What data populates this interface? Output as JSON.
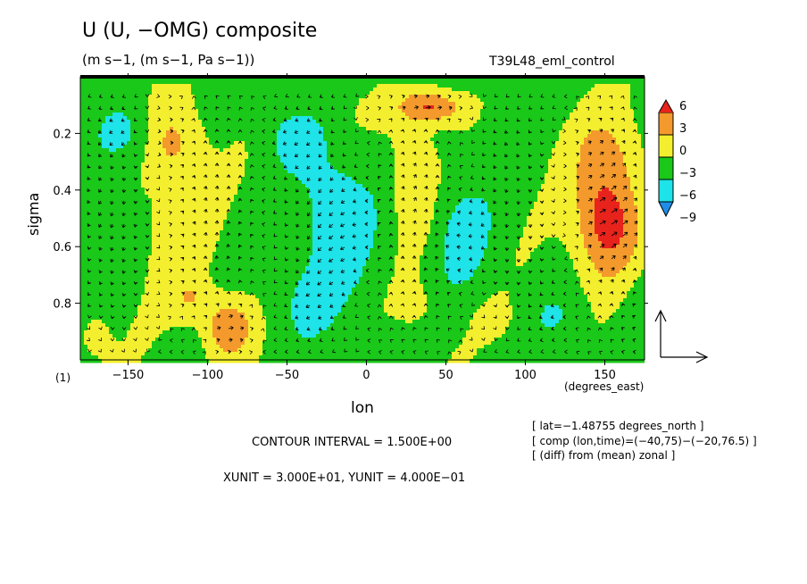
{
  "figure": {
    "title": "U (U, −OMG) composite",
    "units": "(m s−1, (m s−1, Pa s−1))",
    "run_name": "T39L48_eml_control",
    "panel_label": "(1)",
    "contour_interval": "CONTOUR INTERVAL = 1.500E+00",
    "vector_units": "XUNIT = 3.000E+01, YUNIT = 4.000E−01",
    "meta": [
      "[ lat=−1.48755 degrees_north ]",
      "[ comp (lon,time)=(−40,75)−(−20,76.5) ]",
      "[ (diff) from (mean) zonal ]"
    ]
  },
  "chart_data": {
    "type": "heatmap",
    "title": "U (U, −OMG) composite",
    "xlabel": "lon",
    "xunit_label": "(degrees_east)",
    "ylabel": "sigma",
    "xlim": [
      -180,
      175
    ],
    "ylim": [
      1.0,
      0.0
    ],
    "y_reversed": true,
    "x_ticks": [
      -150,
      -100,
      -50,
      0,
      50,
      100,
      150
    ],
    "y_ticks": [
      0.2,
      0.4,
      0.6,
      0.8
    ],
    "colorbar": {
      "levels": [
        -9,
        -6,
        -3,
        0,
        3,
        6
      ],
      "labels": [
        "6",
        "3",
        "0",
        "−3",
        "−6",
        "−9"
      ],
      "colors_high_to_low": [
        "#e8231c",
        "#f49a2c",
        "#f3ef2e",
        "#19c818",
        "#1ee3e8",
        "#1f8de8"
      ]
    },
    "colors": {
      "strong_positive": "#e8231c",
      "positive": "#f49a2c",
      "weak_positive": "#f3ef2e",
      "weak_negative": "#19c818",
      "negative": "#1ee3e8",
      "strong_negative": "#1f8de8"
    },
    "features": [
      {
        "lon": 150,
        "sigma": 0.5,
        "value": 7.5,
        "note": "strong westerly maximum"
      },
      {
        "lon": -88,
        "sigma": 0.88,
        "value": 6,
        "note": "lower-level maximum"
      },
      {
        "lon": 40,
        "sigma": 0.1,
        "value": 6,
        "note": "upper-level maximum"
      },
      {
        "lon": -125,
        "sigma": 0.22,
        "value": 3.5,
        "note": "upper-level positive"
      },
      {
        "lon": -20,
        "sigma": 0.5,
        "value": -4.5,
        "note": "easterly minimum"
      },
      {
        "lon": -150,
        "sigma": 0.2,
        "value": -4,
        "note": "upper-level negative"
      },
      {
        "lon": 60,
        "sigma": 0.55,
        "value": -3.5,
        "note": "mid-level negative"
      }
    ],
    "vectors": "(U, −OMG) arrows plotted over the whole domain",
    "grid": false
  }
}
